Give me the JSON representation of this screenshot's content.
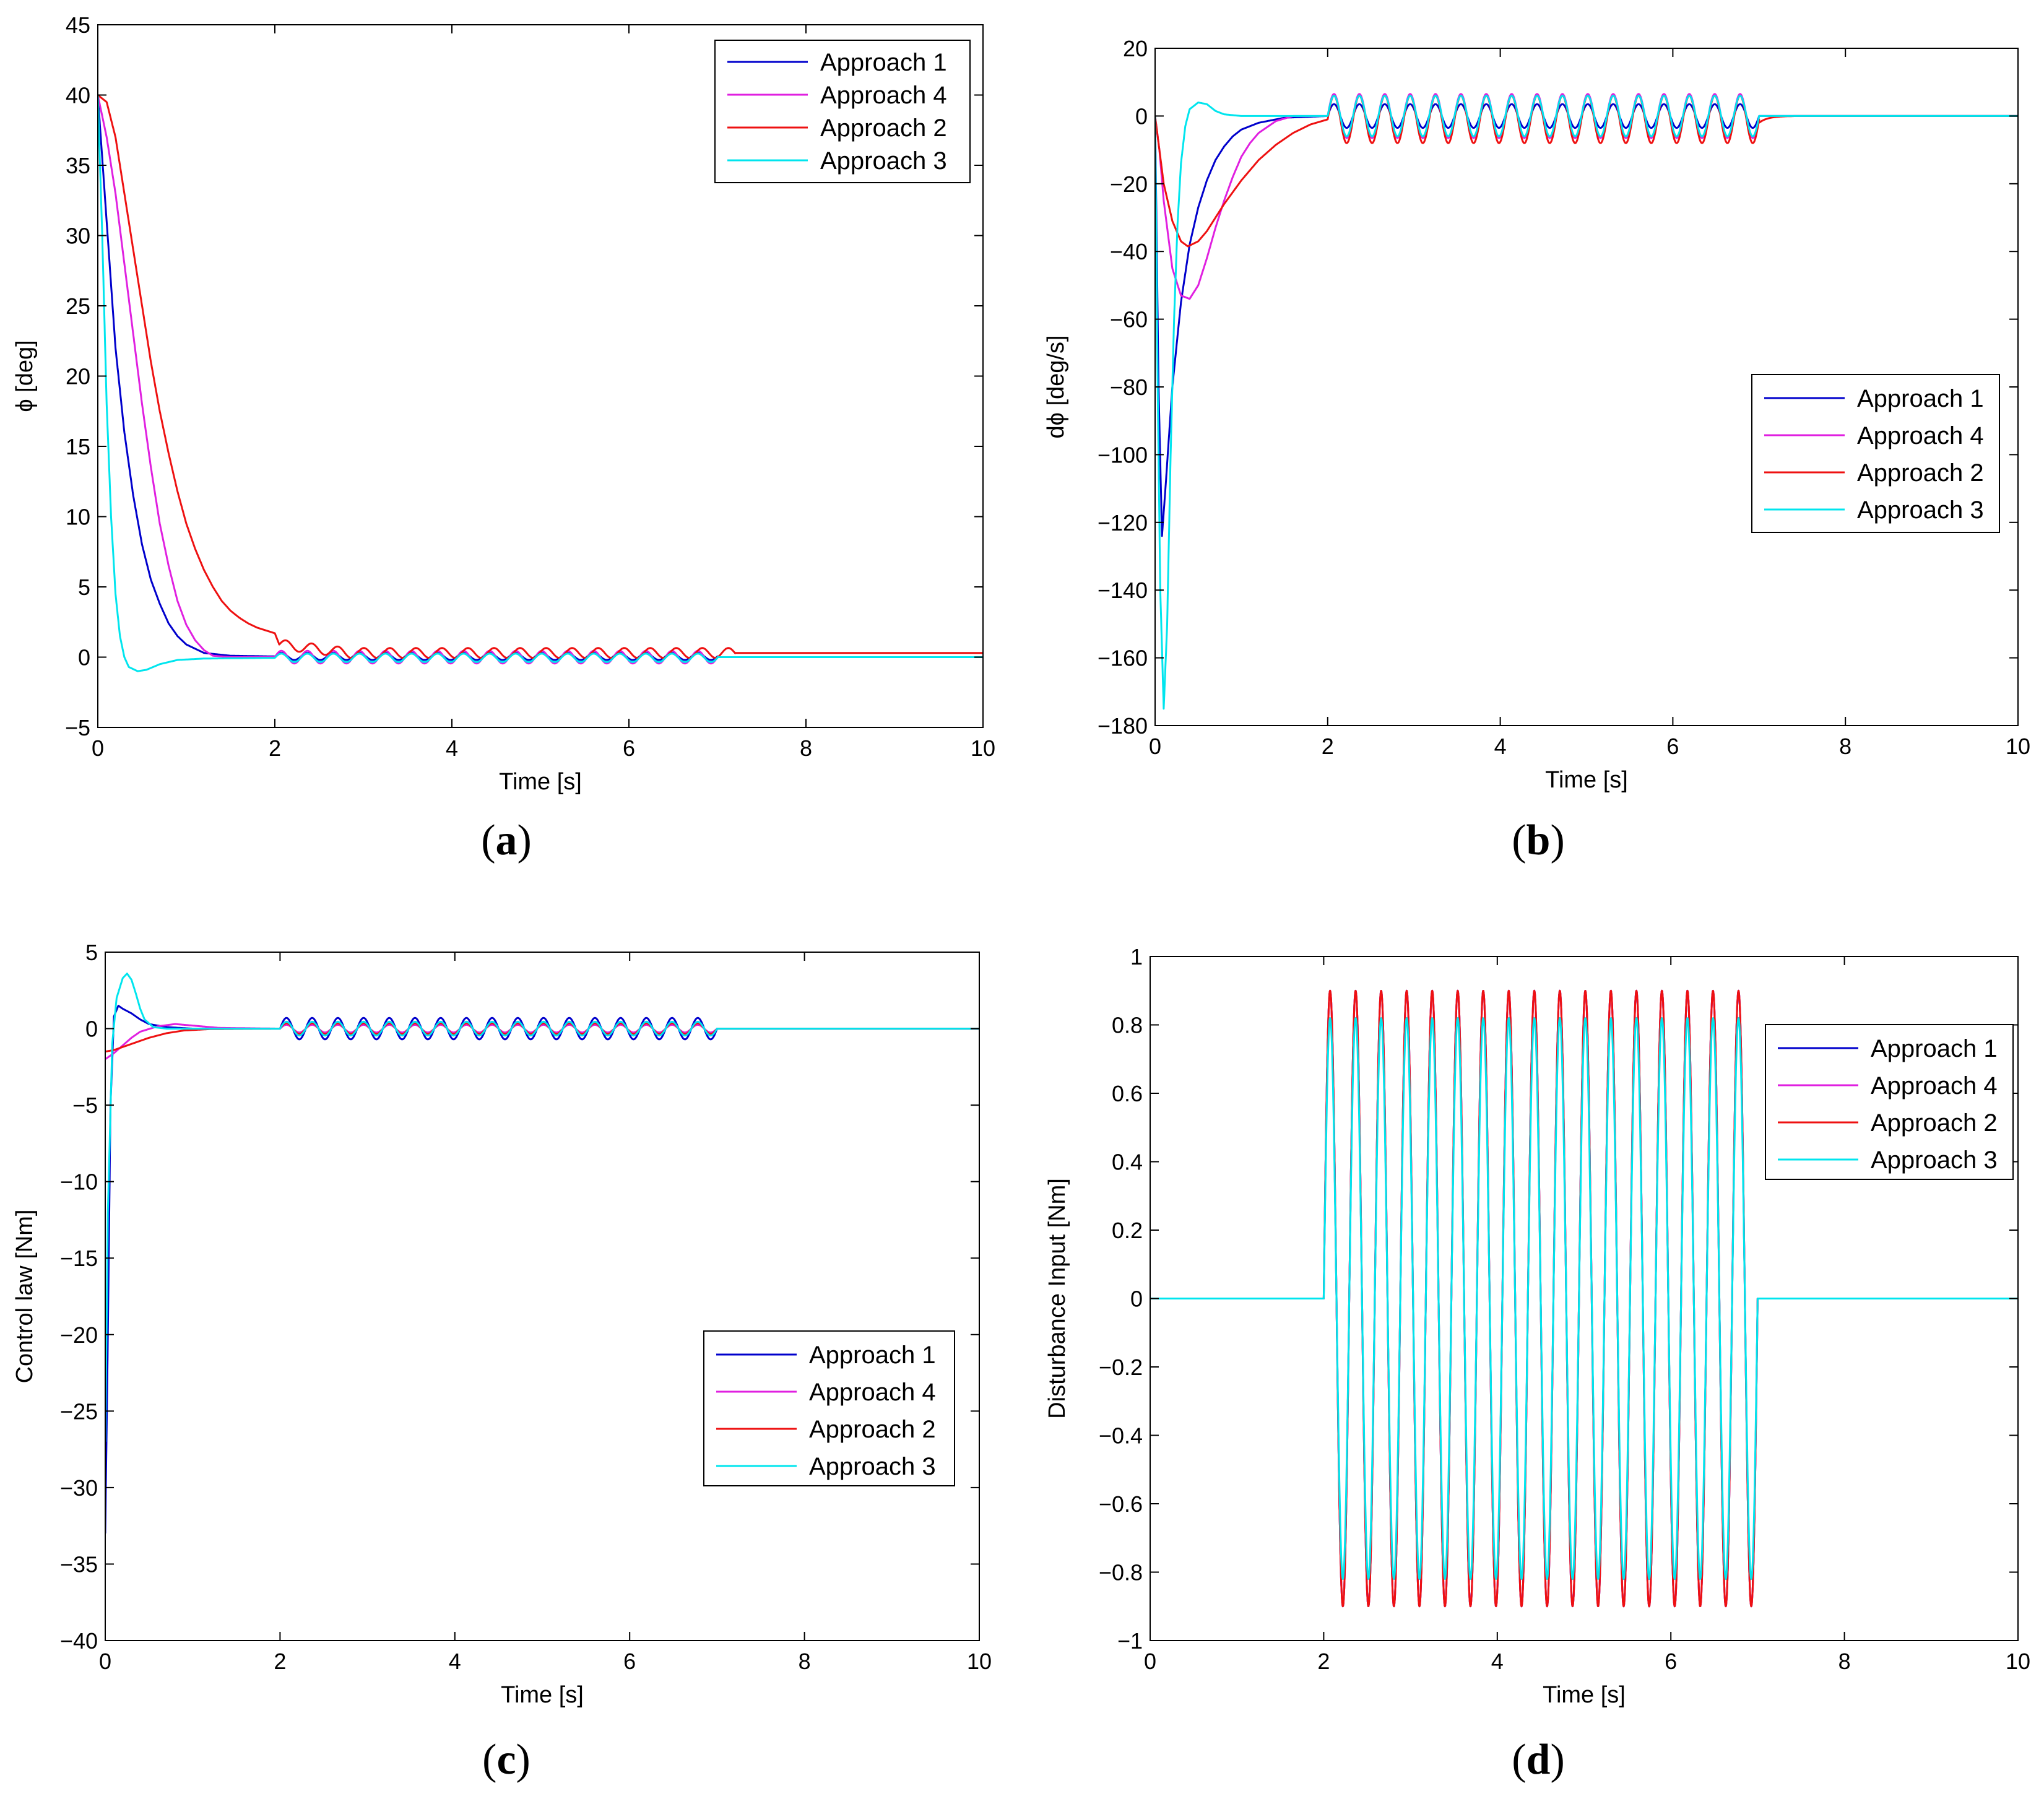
{
  "colors": {
    "approach1": "#0000cc",
    "approach4": "#e020e0",
    "approach2": "#ee1111",
    "approach3": "#00e5ee"
  },
  "chart_data": [
    {
      "id": "a",
      "type": "line",
      "caption": "(a)",
      "caption_letter": "a",
      "xlabel": "Time [s]",
      "ylabel": "ϕ [deg]",
      "xlim": [
        0,
        10
      ],
      "ylim": [
        -5,
        45
      ],
      "xticks": [
        0,
        2,
        4,
        6,
        8,
        10
      ],
      "yticks": [
        -5,
        0,
        5,
        10,
        15,
        20,
        25,
        30,
        35,
        40,
        45
      ],
      "legend_position": "top-right",
      "legend": [
        "Approach 1",
        "Approach 4",
        "Approach 2",
        "Approach 3"
      ],
      "series": [
        {
          "name": "Approach 1",
          "color_key": "approach1",
          "keypoints": [
            [
              0,
              40
            ],
            [
              0.1,
              31
            ],
            [
              0.2,
              22
            ],
            [
              0.3,
              16
            ],
            [
              0.4,
              11.5
            ],
            [
              0.5,
              8
            ],
            [
              0.6,
              5.5
            ],
            [
              0.7,
              3.8
            ],
            [
              0.8,
              2.4
            ],
            [
              0.9,
              1.5
            ],
            [
              1.0,
              0.9
            ],
            [
              1.2,
              0.3
            ],
            [
              1.5,
              0.1
            ],
            [
              2.0,
              0.05
            ]
          ],
          "osc_amp": 0.25,
          "osc_from": 2.0,
          "osc_to": 7.0,
          "after": 0.0
        },
        {
          "name": "Approach 4",
          "color_key": "approach4",
          "keypoints": [
            [
              0,
              40
            ],
            [
              0.1,
              37
            ],
            [
              0.2,
              33
            ],
            [
              0.3,
              28
            ],
            [
              0.4,
              23
            ],
            [
              0.5,
              18
            ],
            [
              0.6,
              13.5
            ],
            [
              0.7,
              9.5
            ],
            [
              0.8,
              6.5
            ],
            [
              0.9,
              4
            ],
            [
              1.0,
              2.3
            ],
            [
              1.1,
              1.2
            ],
            [
              1.2,
              0.5
            ],
            [
              1.3,
              0.1
            ],
            [
              1.5,
              0
            ],
            [
              2.0,
              0
            ]
          ],
          "osc_amp": 0.45,
          "osc_from": 2.0,
          "osc_to": 7.0,
          "after": 0.0
        },
        {
          "name": "Approach 2",
          "color_key": "approach2",
          "keypoints": [
            [
              0,
              40
            ],
            [
              0.1,
              39.5
            ],
            [
              0.2,
              37
            ],
            [
              0.3,
              33
            ],
            [
              0.4,
              29
            ],
            [
              0.5,
              25
            ],
            [
              0.6,
              21
            ],
            [
              0.7,
              17.5
            ],
            [
              0.8,
              14.5
            ],
            [
              0.9,
              11.8
            ],
            [
              1.0,
              9.5
            ],
            [
              1.1,
              7.7
            ],
            [
              1.2,
              6.2
            ],
            [
              1.3,
              5
            ],
            [
              1.4,
              4
            ],
            [
              1.5,
              3.3
            ],
            [
              1.6,
              2.8
            ],
            [
              1.7,
              2.4
            ],
            [
              1.8,
              2.1
            ],
            [
              1.9,
              1.9
            ],
            [
              2.0,
              1.7
            ],
            [
              2.05,
              0.9
            ]
          ],
          "decay_from": 0.9,
          "decay_to": 0.3,
          "osc_amp": 0.35,
          "osc_from": 2.05,
          "osc_to": 7.2,
          "after": 0.3
        },
        {
          "name": "Approach 3",
          "color_key": "approach3",
          "keypoints": [
            [
              0,
              40
            ],
            [
              0.05,
              30
            ],
            [
              0.1,
              18
            ],
            [
              0.15,
              10
            ],
            [
              0.2,
              4.5
            ],
            [
              0.25,
              1.5
            ],
            [
              0.3,
              0
            ],
            [
              0.35,
              -0.7
            ],
            [
              0.45,
              -1
            ],
            [
              0.55,
              -0.9
            ],
            [
              0.7,
              -0.5
            ],
            [
              0.9,
              -0.2
            ],
            [
              1.2,
              -0.1
            ],
            [
              2.0,
              -0.05
            ]
          ],
          "osc_amp": 0.3,
          "osc_from": 2.0,
          "osc_to": 7.0,
          "after": 0.0
        }
      ]
    },
    {
      "id": "b",
      "type": "line",
      "caption": "(b)",
      "caption_letter": "b",
      "xlabel": "Time [s]",
      "ylabel": "dϕ [deg/s]",
      "xlim": [
        0,
        10
      ],
      "ylim": [
        -180,
        20
      ],
      "xticks": [
        0,
        2,
        4,
        6,
        8,
        10
      ],
      "yticks": [
        -180,
        -160,
        -140,
        -120,
        -100,
        -80,
        -60,
        -40,
        -20,
        0,
        20
      ],
      "legend_position": "middle-right",
      "legend": [
        "Approach 1",
        "Approach 4",
        "Approach 2",
        "Approach 3"
      ],
      "series": [
        {
          "name": "Approach 1",
          "color_key": "approach1",
          "keypoints": [
            [
              0,
              0
            ],
            [
              0.04,
              -80
            ],
            [
              0.08,
              -124
            ],
            [
              0.12,
              -110
            ],
            [
              0.2,
              -80
            ],
            [
              0.3,
              -55
            ],
            [
              0.4,
              -38
            ],
            [
              0.5,
              -27
            ],
            [
              0.6,
              -19
            ],
            [
              0.7,
              -13
            ],
            [
              0.8,
              -9
            ],
            [
              0.9,
              -6
            ],
            [
              1.0,
              -4
            ],
            [
              1.2,
              -2
            ],
            [
              1.5,
              -0.5
            ],
            [
              2.0,
              0
            ]
          ],
          "osc_amp": 3.5,
          "osc_from": 2.0,
          "osc_to": 7.0,
          "after": 0.0
        },
        {
          "name": "Approach 4",
          "color_key": "approach4",
          "keypoints": [
            [
              0,
              0
            ],
            [
              0.05,
              -10
            ],
            [
              0.1,
              -25
            ],
            [
              0.2,
              -45
            ],
            [
              0.3,
              -53
            ],
            [
              0.4,
              -54
            ],
            [
              0.5,
              -50
            ],
            [
              0.6,
              -42
            ],
            [
              0.7,
              -33
            ],
            [
              0.8,
              -25
            ],
            [
              0.9,
              -18
            ],
            [
              1.0,
              -12
            ],
            [
              1.1,
              -8
            ],
            [
              1.2,
              -5
            ],
            [
              1.4,
              -1.5
            ],
            [
              1.6,
              0
            ],
            [
              2.0,
              0
            ]
          ],
          "osc_amp": 6.5,
          "osc_from": 2.0,
          "osc_to": 7.0,
          "after": 0.0
        },
        {
          "name": "Approach 2",
          "color_key": "approach2",
          "keypoints": [
            [
              0,
              0
            ],
            [
              0.05,
              -10
            ],
            [
              0.1,
              -20
            ],
            [
              0.2,
              -31
            ],
            [
              0.3,
              -37
            ],
            [
              0.38,
              -38.5
            ],
            [
              0.5,
              -37
            ],
            [
              0.6,
              -34
            ],
            [
              0.7,
              -30
            ],
            [
              0.8,
              -26
            ],
            [
              0.9,
              -22.5
            ],
            [
              1.0,
              -19
            ],
            [
              1.1,
              -16
            ],
            [
              1.2,
              -13
            ],
            [
              1.4,
              -8.5
            ],
            [
              1.6,
              -5
            ],
            [
              1.8,
              -2.5
            ],
            [
              2.0,
              -1
            ]
          ],
          "osc_amp": 7,
          "osc_from": 2.0,
          "osc_to": 7.0,
          "after": 0.0,
          "tail_to": 7.4
        },
        {
          "name": "Approach 3",
          "color_key": "approach3",
          "keypoints": [
            [
              0,
              0
            ],
            [
              0.03,
              -80
            ],
            [
              0.06,
              -140
            ],
            [
              0.1,
              -175
            ],
            [
              0.14,
              -150
            ],
            [
              0.18,
              -100
            ],
            [
              0.22,
              -60
            ],
            [
              0.26,
              -32
            ],
            [
              0.3,
              -14
            ],
            [
              0.35,
              -3
            ],
            [
              0.4,
              2
            ],
            [
              0.5,
              4
            ],
            [
              0.6,
              3.5
            ],
            [
              0.7,
              1.5
            ],
            [
              0.8,
              0.5
            ],
            [
              1.0,
              0
            ],
            [
              2.0,
              0
            ]
          ],
          "osc_amp": 6,
          "osc_from": 2.0,
          "osc_to": 7.0,
          "after": 0.0
        }
      ]
    },
    {
      "id": "c",
      "type": "line",
      "caption": "(c)",
      "caption_letter": "c",
      "xlabel": "Time [s]",
      "ylabel": "Control law [Nm]",
      "xlim": [
        0,
        10
      ],
      "ylim": [
        -40,
        5
      ],
      "xticks": [
        0,
        2,
        4,
        6,
        8,
        10
      ],
      "yticks": [
        -40,
        -35,
        -30,
        -25,
        -20,
        -15,
        -10,
        -5,
        0,
        5
      ],
      "legend_position": "bottom-right",
      "legend": [
        "Approach 1",
        "Approach 4",
        "Approach 2",
        "Approach 3"
      ],
      "series": [
        {
          "name": "Approach 1",
          "color_key": "approach1",
          "keypoints": [
            [
              0,
              -33
            ],
            [
              0.03,
              -20
            ],
            [
              0.06,
              -5
            ],
            [
              0.1,
              0.8
            ],
            [
              0.15,
              1.5
            ],
            [
              0.2,
              1.3
            ],
            [
              0.3,
              1
            ],
            [
              0.4,
              0.6
            ],
            [
              0.5,
              0.3
            ],
            [
              0.7,
              0.1
            ],
            [
              1.0,
              0
            ],
            [
              2.0,
              0
            ]
          ],
          "osc_amp": 0.7,
          "osc_from": 2.0,
          "osc_to": 7.0,
          "after": 0.0
        },
        {
          "name": "Approach 4",
          "color_key": "approach4",
          "keypoints": [
            [
              0,
              -2
            ],
            [
              0.1,
              -1.6
            ],
            [
              0.2,
              -1.1
            ],
            [
              0.3,
              -0.6
            ],
            [
              0.4,
              -0.2
            ],
            [
              0.6,
              0.15
            ],
            [
              0.8,
              0.3
            ],
            [
              1.0,
              0.2
            ],
            [
              1.3,
              0.05
            ],
            [
              2.0,
              0
            ]
          ],
          "osc_amp": 0.25,
          "osc_from": 2.0,
          "osc_to": 7.0,
          "after": 0.0
        },
        {
          "name": "Approach 2",
          "color_key": "approach2",
          "keypoints": [
            [
              0,
              -1.5
            ],
            [
              0.1,
              -1.4
            ],
            [
              0.2,
              -1.2
            ],
            [
              0.35,
              -0.9
            ],
            [
              0.5,
              -0.6
            ],
            [
              0.7,
              -0.3
            ],
            [
              0.9,
              -0.12
            ],
            [
              1.2,
              -0.03
            ],
            [
              2.0,
              0
            ]
          ],
          "osc_amp": 0.35,
          "osc_from": 2.0,
          "osc_to": 7.0,
          "after": 0.0
        },
        {
          "name": "Approach 3",
          "color_key": "approach3",
          "keypoints": [
            [
              0,
              -27
            ],
            [
              0.03,
              -12
            ],
            [
              0.08,
              -1
            ],
            [
              0.13,
              2
            ],
            [
              0.2,
              3.3
            ],
            [
              0.25,
              3.6
            ],
            [
              0.3,
              3.2
            ],
            [
              0.35,
              2.3
            ],
            [
              0.4,
              1.3
            ],
            [
              0.45,
              0.6
            ],
            [
              0.55,
              0.1
            ],
            [
              0.7,
              0
            ],
            [
              2.0,
              0
            ]
          ],
          "osc_amp": 0.45,
          "osc_from": 2.0,
          "osc_to": 7.0,
          "after": 0.0
        }
      ]
    },
    {
      "id": "d",
      "type": "line",
      "caption": "(d)",
      "caption_letter": "d",
      "xlabel": "Time [s]",
      "ylabel": "Disturbance Input [Nm]",
      "xlim": [
        0,
        10
      ],
      "ylim": [
        -1,
        1
      ],
      "xticks": [
        0,
        2,
        4,
        6,
        8,
        10
      ],
      "yticks": [
        -1,
        -0.8,
        -0.6,
        -0.4,
        -0.2,
        0,
        0.2,
        0.4,
        0.6,
        0.8,
        1
      ],
      "legend_position": "top-right",
      "legend": [
        "Approach 1",
        "Approach 4",
        "Approach 2",
        "Approach 3"
      ],
      "series": [
        {
          "name": "Approach 1",
          "color_key": "approach1",
          "sine_amp": 0.9,
          "sine_from": 2.0,
          "sine_to": 7.0,
          "cycles": 17
        },
        {
          "name": "Approach 4",
          "color_key": "approach4",
          "sine_amp": 0.9,
          "sine_from": 2.0,
          "sine_to": 7.0,
          "cycles": 17
        },
        {
          "name": "Approach 2",
          "color_key": "approach2",
          "sine_amp": 0.9,
          "sine_from": 2.0,
          "sine_to": 7.0,
          "cycles": 17
        },
        {
          "name": "Approach 3",
          "color_key": "approach3",
          "sine_amp": 0.82,
          "sine_from": 2.0,
          "sine_to": 7.0,
          "cycles": 17
        }
      ]
    }
  ]
}
